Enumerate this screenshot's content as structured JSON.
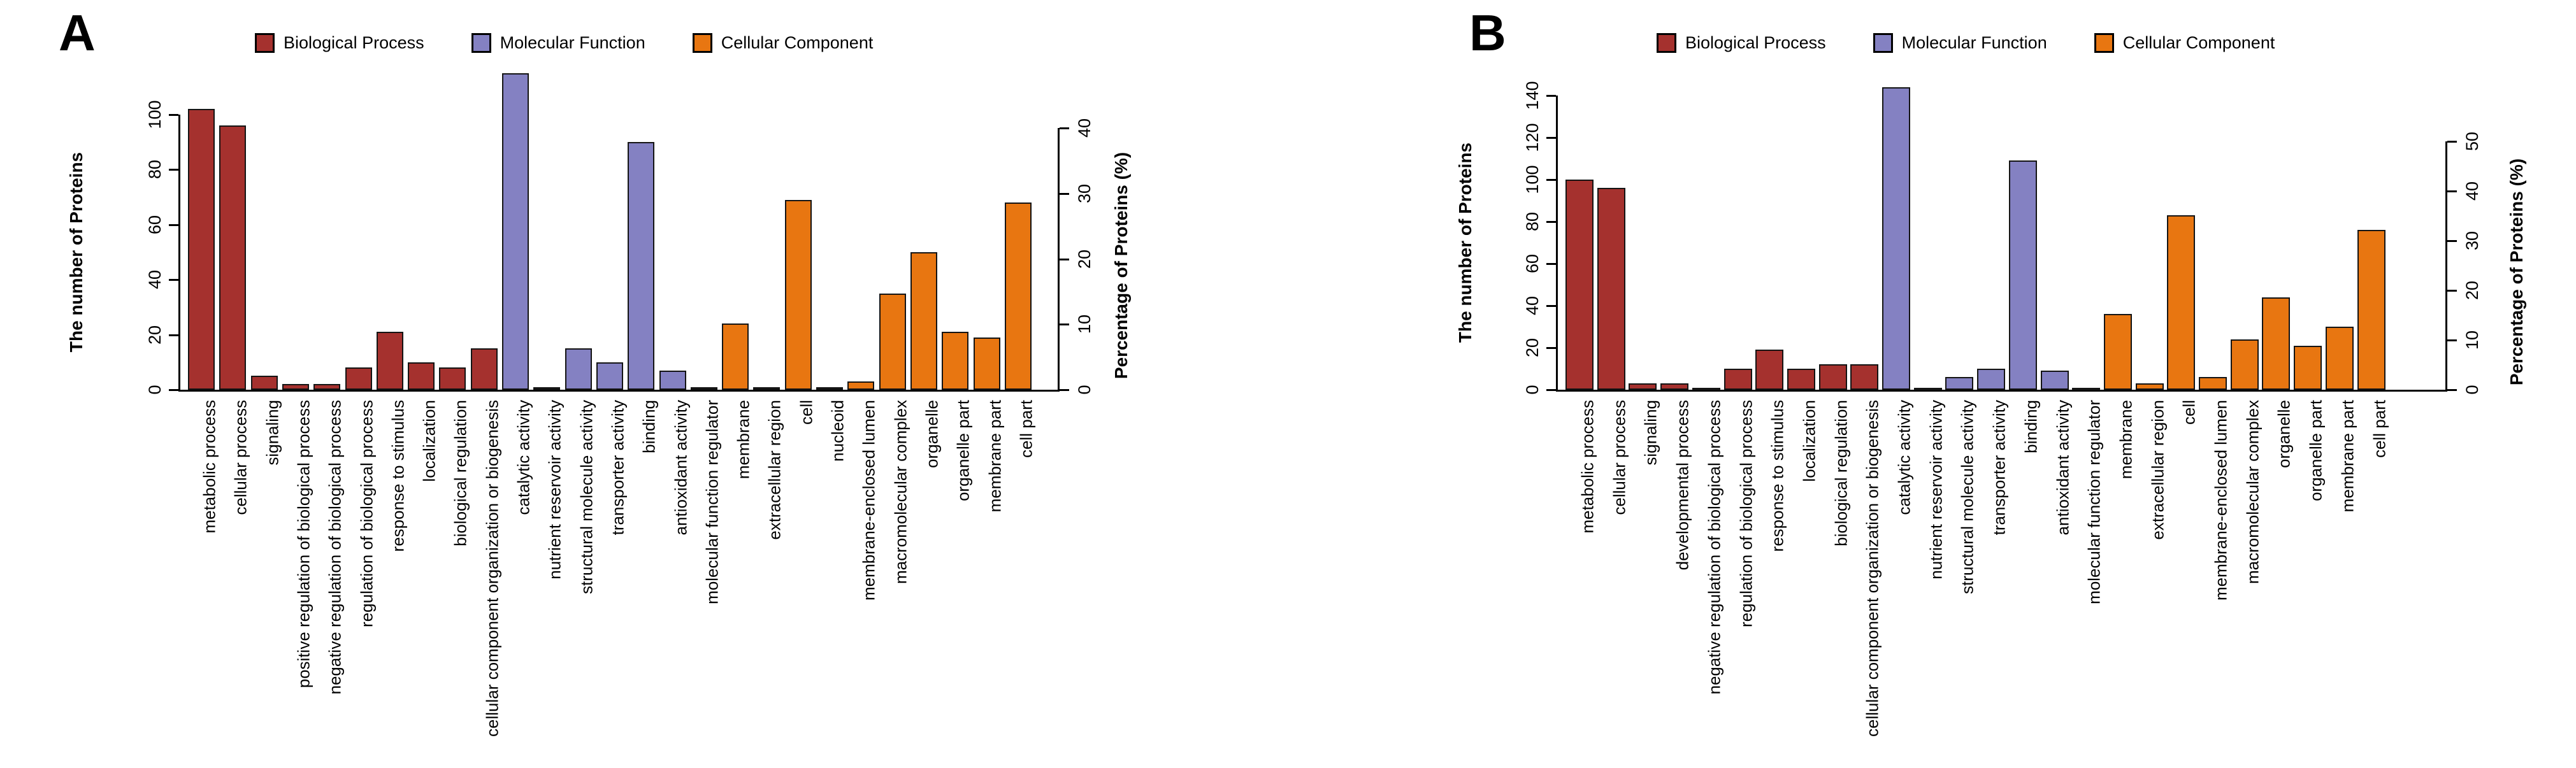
{
  "figure_title": "GO annotation bar charts",
  "groups": {
    "BP": {
      "label": "Biological Process",
      "color": "#A5312E"
    },
    "MF": {
      "label": "Molecular Function",
      "color": "#8481C2"
    },
    "CC": {
      "label": "Cellular Component",
      "color": "#E87611"
    }
  },
  "chart_data": [
    {
      "type": "bar",
      "panel_label": "A",
      "ylabel": "The number of Proteins",
      "ylabel_right": "Percentage of Proteins (%)",
      "legend_entries": [
        "Biological Process",
        "Molecular Function",
        "Cellular Component"
      ],
      "legend_position": "top",
      "grid": false,
      "left_ticks": [
        0,
        20,
        40,
        60,
        80,
        100
      ],
      "right_ticks": [
        0,
        10,
        20,
        30,
        40
      ],
      "ylim_left": [
        0,
        115
      ],
      "counts_per_percent": 2.378,
      "categories": [
        {
          "label": "metabolic process",
          "group": "BP",
          "value": 102
        },
        {
          "label": "cellular process",
          "group": "BP",
          "value": 96
        },
        {
          "label": "signaling",
          "group": "BP",
          "value": 5
        },
        {
          "label": "positive regulation of biological process",
          "group": "BP",
          "value": 2
        },
        {
          "label": "negative regulation of biological process",
          "group": "BP",
          "value": 2
        },
        {
          "label": "regulation of biological process",
          "group": "BP",
          "value": 8
        },
        {
          "label": "response to stimulus",
          "group": "BP",
          "value": 21
        },
        {
          "label": "localization",
          "group": "BP",
          "value": 10
        },
        {
          "label": "biological regulation",
          "group": "BP",
          "value": 8
        },
        {
          "label": "cellular component organization or biogenesis",
          "group": "BP",
          "value": 15
        },
        {
          "label": "catalytic activity",
          "group": "MF",
          "value": 115
        },
        {
          "label": "nutrient reservoir activity",
          "group": "MF",
          "value": 1
        },
        {
          "label": "structural molecule activity",
          "group": "MF",
          "value": 15
        },
        {
          "label": "transporter activity",
          "group": "MF",
          "value": 10
        },
        {
          "label": "binding",
          "group": "MF",
          "value": 90
        },
        {
          "label": "antioxidant activity",
          "group": "MF",
          "value": 7
        },
        {
          "label": "molecular function regulator",
          "group": "MF",
          "value": 1
        },
        {
          "label": "membrane",
          "group": "CC",
          "value": 24
        },
        {
          "label": "extracellular region",
          "group": "CC",
          "value": 1
        },
        {
          "label": "cell",
          "group": "CC",
          "value": 69
        },
        {
          "label": "nucleoid",
          "group": "CC",
          "value": 1
        },
        {
          "label": "membrane-enclosed lumen",
          "group": "CC",
          "value": 3
        },
        {
          "label": "macromolecular complex",
          "group": "CC",
          "value": 35
        },
        {
          "label": "organelle",
          "group": "CC",
          "value": 50
        },
        {
          "label": "organelle part",
          "group": "CC",
          "value": 21
        },
        {
          "label": "membrane part",
          "group": "CC",
          "value": 19
        },
        {
          "label": "cell part",
          "group": "CC",
          "value": 68
        }
      ]
    },
    {
      "type": "bar",
      "panel_label": "B",
      "ylabel": "The number of Proteins",
      "ylabel_right": "Percentage of Proteins (%)",
      "legend_entries": [
        "Biological Process",
        "Molecular Function",
        "Cellular Component"
      ],
      "legend_position": "top",
      "grid": false,
      "left_ticks": [
        0,
        20,
        40,
        60,
        80,
        100,
        120,
        140
      ],
      "right_ticks": [
        0,
        10,
        20,
        30,
        40,
        50
      ],
      "ylim_left": [
        0,
        144
      ],
      "counts_per_percent": 2.365,
      "categories": [
        {
          "label": "metabolic process",
          "group": "BP",
          "value": 100
        },
        {
          "label": "cellular process",
          "group": "BP",
          "value": 96
        },
        {
          "label": "signaling",
          "group": "BP",
          "value": 3
        },
        {
          "label": "developmental process",
          "group": "BP",
          "value": 3
        },
        {
          "label": "negative regulation of biological process",
          "group": "BP",
          "value": 1
        },
        {
          "label": "regulation of biological process",
          "group": "BP",
          "value": 10
        },
        {
          "label": "response to stimulus",
          "group": "BP",
          "value": 19
        },
        {
          "label": "localization",
          "group": "BP",
          "value": 10
        },
        {
          "label": "biological regulation",
          "group": "BP",
          "value": 12
        },
        {
          "label": "cellular component organization or biogenesis",
          "group": "BP",
          "value": 12
        },
        {
          "label": "catalytic activity",
          "group": "MF",
          "value": 144
        },
        {
          "label": "nutrient reservoir activity",
          "group": "MF",
          "value": 1
        },
        {
          "label": "structural molecule activity",
          "group": "MF",
          "value": 6
        },
        {
          "label": "transporter activity",
          "group": "MF",
          "value": 10
        },
        {
          "label": "binding",
          "group": "MF",
          "value": 109
        },
        {
          "label": "antioxidant activity",
          "group": "MF",
          "value": 9
        },
        {
          "label": "molecular function regulator",
          "group": "MF",
          "value": 1
        },
        {
          "label": "membrane",
          "group": "CC",
          "value": 36
        },
        {
          "label": "extracellular region",
          "group": "CC",
          "value": 3
        },
        {
          "label": "cell",
          "group": "CC",
          "value": 83
        },
        {
          "label": "membrane-enclosed lumen",
          "group": "CC",
          "value": 6
        },
        {
          "label": "macromolecular complex",
          "group": "CC",
          "value": 24
        },
        {
          "label": "organelle",
          "group": "CC",
          "value": 44
        },
        {
          "label": "organelle part",
          "group": "CC",
          "value": 21
        },
        {
          "label": "membrane part",
          "group": "CC",
          "value": 30
        },
        {
          "label": "cell part",
          "group": "CC",
          "value": 76
        }
      ]
    }
  ]
}
